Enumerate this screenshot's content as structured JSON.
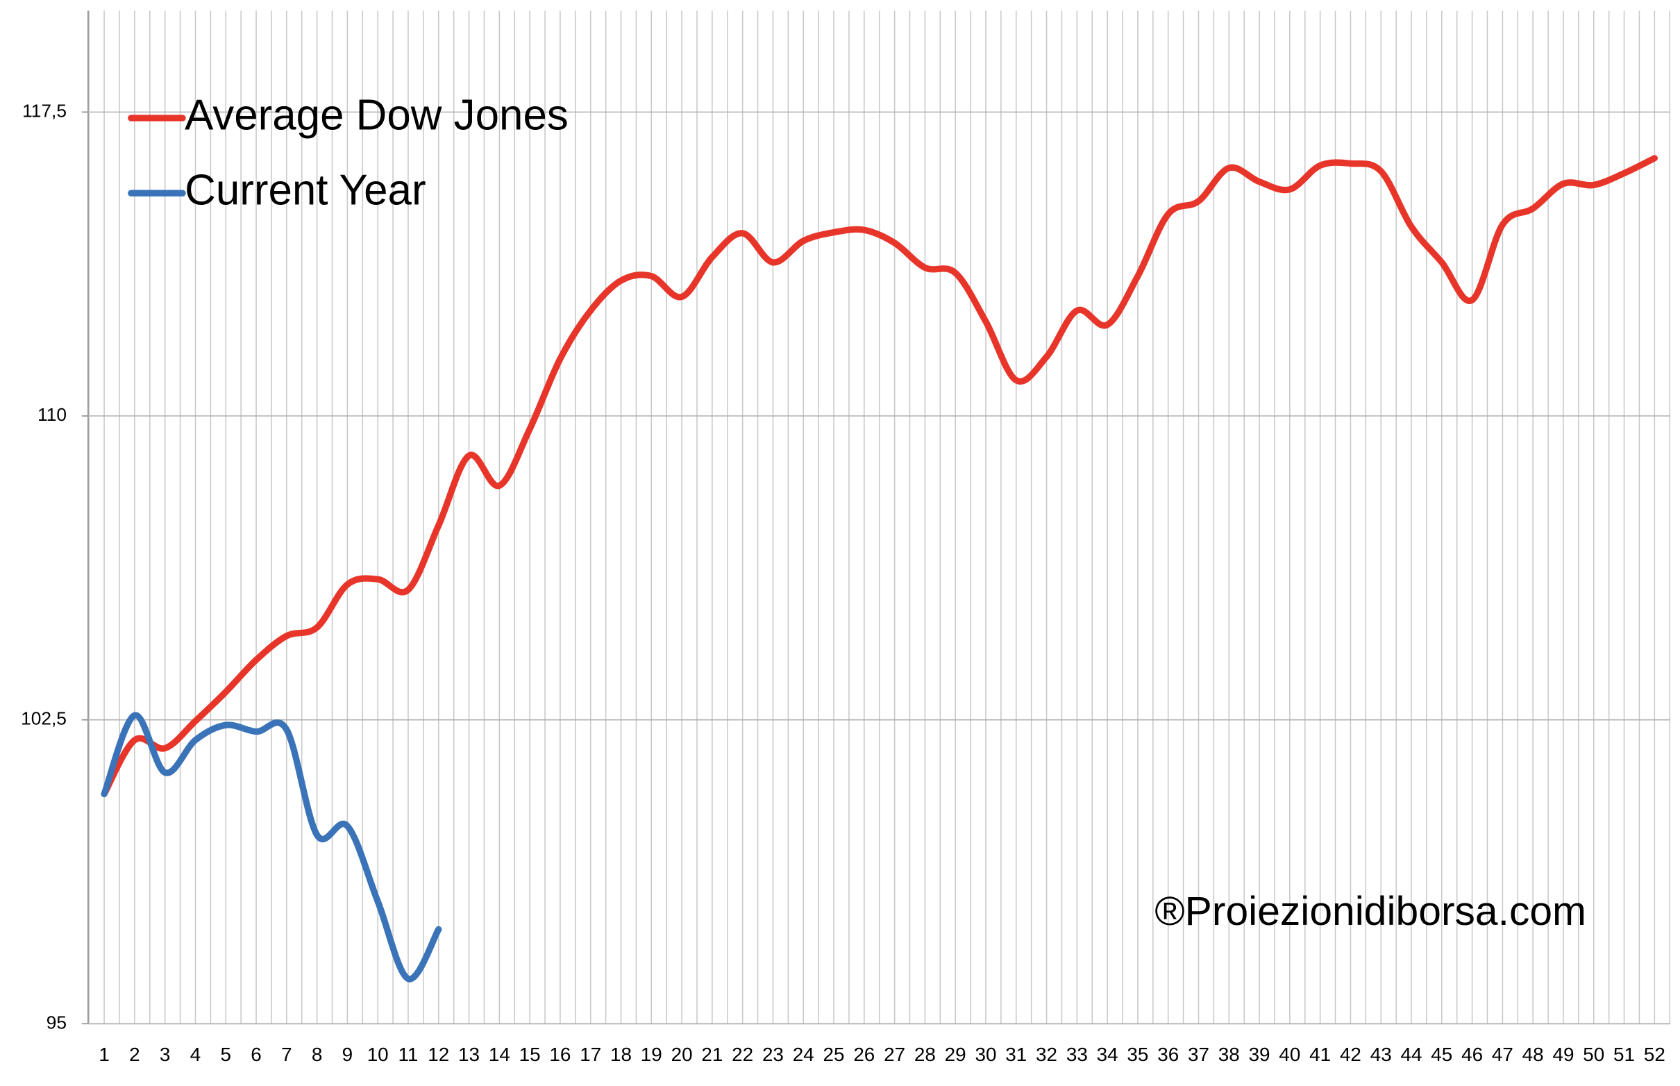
{
  "chart_data": {
    "type": "line",
    "categories": [
      "1",
      "2",
      "3",
      "4",
      "5",
      "6",
      "7",
      "8",
      "9",
      "10",
      "11",
      "12",
      "13",
      "14",
      "15",
      "16",
      "17",
      "18",
      "19",
      "20",
      "21",
      "22",
      "23",
      "24",
      "25",
      "26",
      "27",
      "28",
      "29",
      "30",
      "31",
      "32",
      "33",
      "34",
      "35",
      "36",
      "37",
      "38",
      "39",
      "40",
      "41",
      "42",
      "43",
      "44",
      "45",
      "46",
      "47",
      "48",
      "49",
      "50",
      "51",
      "52"
    ],
    "series": [
      {
        "name": "Average Dow Jones",
        "color": "#e8352a",
        "values": [
          100.67,
          102.0,
          101.8,
          102.47,
          103.19,
          103.98,
          104.57,
          104.78,
          105.84,
          105.97,
          105.71,
          107.3,
          109.02,
          108.28,
          109.68,
          111.41,
          112.6,
          113.34,
          113.45,
          112.94,
          113.92,
          114.51,
          113.79,
          114.32,
          114.53,
          114.59,
          114.27,
          113.66,
          113.53,
          112.33,
          110.88,
          111.46,
          112.6,
          112.25,
          113.45,
          114.98,
          115.3,
          116.12,
          115.78,
          115.59,
          116.18,
          116.23,
          116.04,
          114.67,
          113.79,
          112.86,
          114.72,
          115.12,
          115.73,
          115.7,
          115.99,
          116.36
        ]
      },
      {
        "name": "Current Year",
        "color": "#3a73b8",
        "values": [
          100.67,
          102.61,
          101.2,
          102.0,
          102.37,
          102.21,
          102.26,
          99.66,
          99.88,
          98.02,
          96.11,
          97.33,
          null,
          null,
          null,
          null,
          null,
          null,
          null,
          null,
          null,
          null,
          null,
          null,
          null,
          null,
          null,
          null,
          null,
          null,
          null,
          null,
          null,
          null,
          null,
          null,
          null,
          null,
          null,
          null,
          null,
          null,
          null,
          null,
          null,
          null,
          null,
          null,
          null,
          null,
          null,
          null
        ]
      }
    ],
    "ylim": [
      95,
      120
    ],
    "yticks": [
      95,
      {
        "value": 102.5,
        "label": "102,5"
      },
      110,
      {
        "value": 117.5,
        "label": "117,5"
      }
    ],
    "grid": true,
    "legend": "top-left",
    "annotation": "®Proiezionidiborsa.com"
  }
}
